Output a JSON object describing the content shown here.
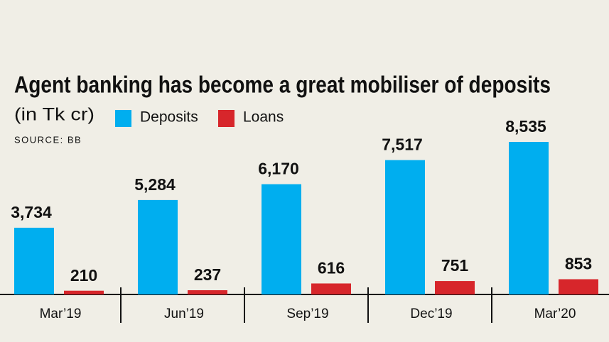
{
  "chart_data": {
    "type": "bar",
    "title": "Agent banking has become a great mobiliser of deposits",
    "subtitle": "(in Tk cr)",
    "source": "SOURCE: BB",
    "categories": [
      "Mar’19",
      "Jun’19",
      "Sep’19",
      "Dec’19",
      "Mar’20"
    ],
    "series": [
      {
        "name": "Deposits",
        "color": "#00aeef",
        "values": [
          3734,
          5284,
          6170,
          7517,
          8535
        ],
        "value_labels": [
          "3,734",
          "5,284",
          "6,170",
          "7,517",
          "8,535"
        ]
      },
      {
        "name": "Loans",
        "color": "#d7262b",
        "values": [
          210,
          237,
          616,
          751,
          853
        ],
        "value_labels": [
          "210",
          "237",
          "616",
          "751",
          "853"
        ]
      }
    ]
  }
}
